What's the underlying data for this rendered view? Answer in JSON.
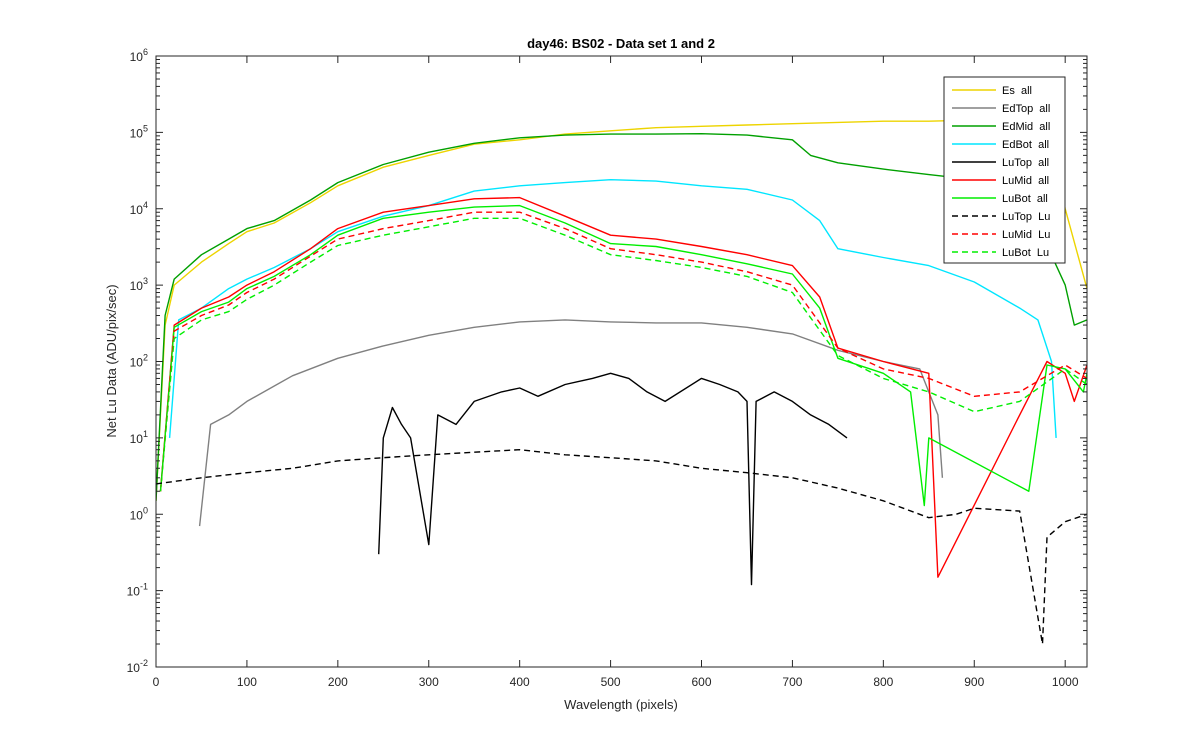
{
  "chart_data": {
    "type": "line",
    "title": "day46: BS02 - Data set 1 and 2",
    "xlabel": "Wavelength (pixels)",
    "ylabel": "Net Lu Data (ADU/pix/sec)",
    "xlim": [
      0,
      1024
    ],
    "ylim": [
      0.01,
      1000000
    ],
    "yscale": "log",
    "grid": false,
    "legend_position": "top-right",
    "x_ticks": [
      0,
      100,
      200,
      300,
      400,
      500,
      600,
      700,
      800,
      900,
      1000
    ],
    "x_tick_labels": [
      "0",
      "100",
      "200",
      "300",
      "400",
      "500",
      "600",
      "700",
      "800",
      "900",
      "1000"
    ],
    "y_ticks": [
      0.01,
      0.1,
      1,
      10,
      100,
      1000,
      10000,
      100000,
      1000000
    ],
    "y_tick_labels": [
      {
        "base": "10",
        "exp": "-2"
      },
      {
        "base": "10",
        "exp": "-1"
      },
      {
        "base": "10",
        "exp": "0"
      },
      {
        "base": "10",
        "exp": "1"
      },
      {
        "base": "10",
        "exp": "2"
      },
      {
        "base": "10",
        "exp": "3"
      },
      {
        "base": "10",
        "exp": "4"
      },
      {
        "base": "10",
        "exp": "5"
      },
      {
        "base": "10",
        "exp": "6"
      }
    ],
    "series": [
      {
        "name": "Es  all",
        "color": "#EDD400",
        "dash": "solid",
        "x": [
          0,
          10,
          20,
          50,
          80,
          100,
          130,
          170,
          200,
          250,
          300,
          350,
          400,
          450,
          500,
          550,
          600,
          650,
          700,
          750,
          800,
          850,
          900,
          950,
          980,
          1000,
          1024
        ],
        "y": [
          1.5,
          300,
          1000,
          2000,
          3500,
          5000,
          6500,
          12000,
          20000,
          35000,
          50000,
          70000,
          80000,
          95000,
          105000,
          115000,
          120000,
          125000,
          130000,
          135000,
          140000,
          140000,
          145000,
          150000,
          140000,
          10000,
          900
        ]
      },
      {
        "name": "EdTop  all",
        "color": "#808080",
        "dash": "solid",
        "x": [
          48,
          60,
          80,
          100,
          150,
          200,
          250,
          300,
          350,
          400,
          450,
          500,
          550,
          600,
          650,
          700,
          750,
          800,
          840,
          860,
          865
        ],
        "y": [
          0.7,
          15,
          20,
          30,
          65,
          110,
          160,
          220,
          280,
          330,
          350,
          330,
          320,
          320,
          280,
          230,
          140,
          100,
          80,
          20,
          3
        ]
      },
      {
        "name": "EdMid  all",
        "color": "#00A000",
        "dash": "solid",
        "x": [
          0,
          10,
          20,
          50,
          80,
          100,
          130,
          170,
          200,
          250,
          300,
          350,
          400,
          450,
          500,
          550,
          600,
          650,
          700,
          720,
          750,
          800,
          850,
          900,
          950,
          1000,
          1010,
          1024
        ],
        "y": [
          1.5,
          400,
          1200,
          2500,
          4000,
          5500,
          7000,
          13000,
          22000,
          38000,
          55000,
          72000,
          85000,
          92000,
          95000,
          95000,
          96000,
          92000,
          80000,
          50000,
          40000,
          33000,
          28000,
          24000,
          20000,
          1000,
          300,
          350
        ]
      },
      {
        "name": "EdBot  all",
        "color": "#00E6FF",
        "dash": "solid",
        "x": [
          15,
          25,
          50,
          80,
          100,
          130,
          170,
          200,
          250,
          300,
          350,
          400,
          450,
          500,
          550,
          600,
          650,
          700,
          730,
          750,
          800,
          850,
          900,
          950,
          970,
          985,
          990
        ],
        "y": [
          10,
          350,
          500,
          900,
          1200,
          1700,
          3000,
          5000,
          8000,
          11000,
          17000,
          20000,
          22000,
          24000,
          23000,
          20000,
          18000,
          13000,
          7000,
          3000,
          2300,
          1800,
          1100,
          500,
          350,
          100,
          10
        ]
      },
      {
        "name": "LuTop  all",
        "color": "#000000",
        "dash": "solid",
        "x": [
          245,
          250,
          260,
          270,
          280,
          300,
          310,
          330,
          350,
          380,
          400,
          420,
          450,
          480,
          500,
          520,
          540,
          560,
          600,
          620,
          640,
          650,
          655,
          660,
          680,
          700,
          720,
          740,
          760
        ],
        "y": [
          0.3,
          10,
          25,
          15,
          10,
          0.4,
          20,
          15,
          30,
          40,
          45,
          35,
          50,
          60,
          70,
          60,
          40,
          30,
          60,
          50,
          40,
          30,
          0.12,
          30,
          40,
          30,
          20,
          15,
          10
        ]
      },
      {
        "name": "LuMid  all",
        "color": "#FF0000",
        "dash": "solid",
        "x": [
          5,
          20,
          50,
          80,
          100,
          130,
          170,
          200,
          250,
          300,
          350,
          400,
          450,
          500,
          550,
          600,
          650,
          700,
          730,
          750,
          800,
          850,
          860,
          950,
          980,
          1000,
          1010,
          1024
        ],
        "y": [
          2,
          300,
          500,
          700,
          1000,
          1500,
          3000,
          5500,
          9000,
          11000,
          13500,
          14000,
          8000,
          4500,
          4000,
          3200,
          2500,
          1800,
          700,
          150,
          100,
          70,
          0.15,
          20,
          100,
          70,
          30,
          90
        ]
      },
      {
        "name": "LuBot  all",
        "color": "#00EE00",
        "dash": "solid",
        "x": [
          5,
          20,
          50,
          80,
          100,
          130,
          170,
          200,
          250,
          300,
          350,
          400,
          450,
          500,
          550,
          600,
          650,
          700,
          730,
          750,
          800,
          830,
          845,
          850,
          960,
          980,
          1000,
          1020,
          1024
        ],
        "y": [
          2,
          280,
          450,
          600,
          900,
          1300,
          2500,
          4500,
          7500,
          9000,
          10500,
          11000,
          6500,
          3500,
          3200,
          2500,
          1900,
          1400,
          500,
          110,
          70,
          40,
          1.3,
          10,
          2,
          90,
          80,
          40,
          70
        ]
      },
      {
        "name": "LuTop  Lu",
        "color": "#000000",
        "dash": "dashed",
        "x": [
          0,
          50,
          100,
          150,
          200,
          250,
          300,
          350,
          400,
          450,
          500,
          550,
          600,
          650,
          700,
          750,
          800,
          850,
          880,
          900,
          950,
          975,
          980,
          1000,
          1024
        ],
        "y": [
          2.5,
          3,
          3.5,
          4,
          5,
          5.5,
          6,
          6.5,
          7,
          6,
          5.5,
          5,
          4,
          3.5,
          3,
          2.2,
          1.5,
          0.9,
          1,
          1.2,
          1.1,
          0.02,
          0.5,
          0.8,
          1
        ]
      },
      {
        "name": "LuMid  Lu",
        "color": "#FF0000",
        "dash": "dashed",
        "x": [
          5,
          20,
          50,
          80,
          100,
          130,
          170,
          200,
          250,
          300,
          350,
          400,
          450,
          500,
          550,
          600,
          650,
          700,
          750,
          800,
          850,
          900,
          950,
          1000,
          1024
        ],
        "y": [
          2,
          250,
          400,
          550,
          800,
          1200,
          2400,
          4000,
          5500,
          7000,
          9000,
          9000,
          5500,
          3000,
          2500,
          2000,
          1500,
          1000,
          150,
          80,
          60,
          35,
          40,
          90,
          60
        ]
      },
      {
        "name": "LuBot  Lu",
        "color": "#00EE00",
        "dash": "dashed",
        "x": [
          5,
          20,
          50,
          80,
          100,
          130,
          170,
          200,
          250,
          300,
          350,
          400,
          450,
          500,
          550,
          600,
          650,
          700,
          750,
          800,
          850,
          900,
          950,
          1000,
          1024
        ],
        "y": [
          2,
          200,
          350,
          450,
          650,
          1000,
          2000,
          3300,
          4500,
          5800,
          7500,
          7500,
          4500,
          2500,
          2100,
          1700,
          1300,
          800,
          120,
          60,
          40,
          22,
          30,
          80,
          50
        ]
      }
    ]
  }
}
